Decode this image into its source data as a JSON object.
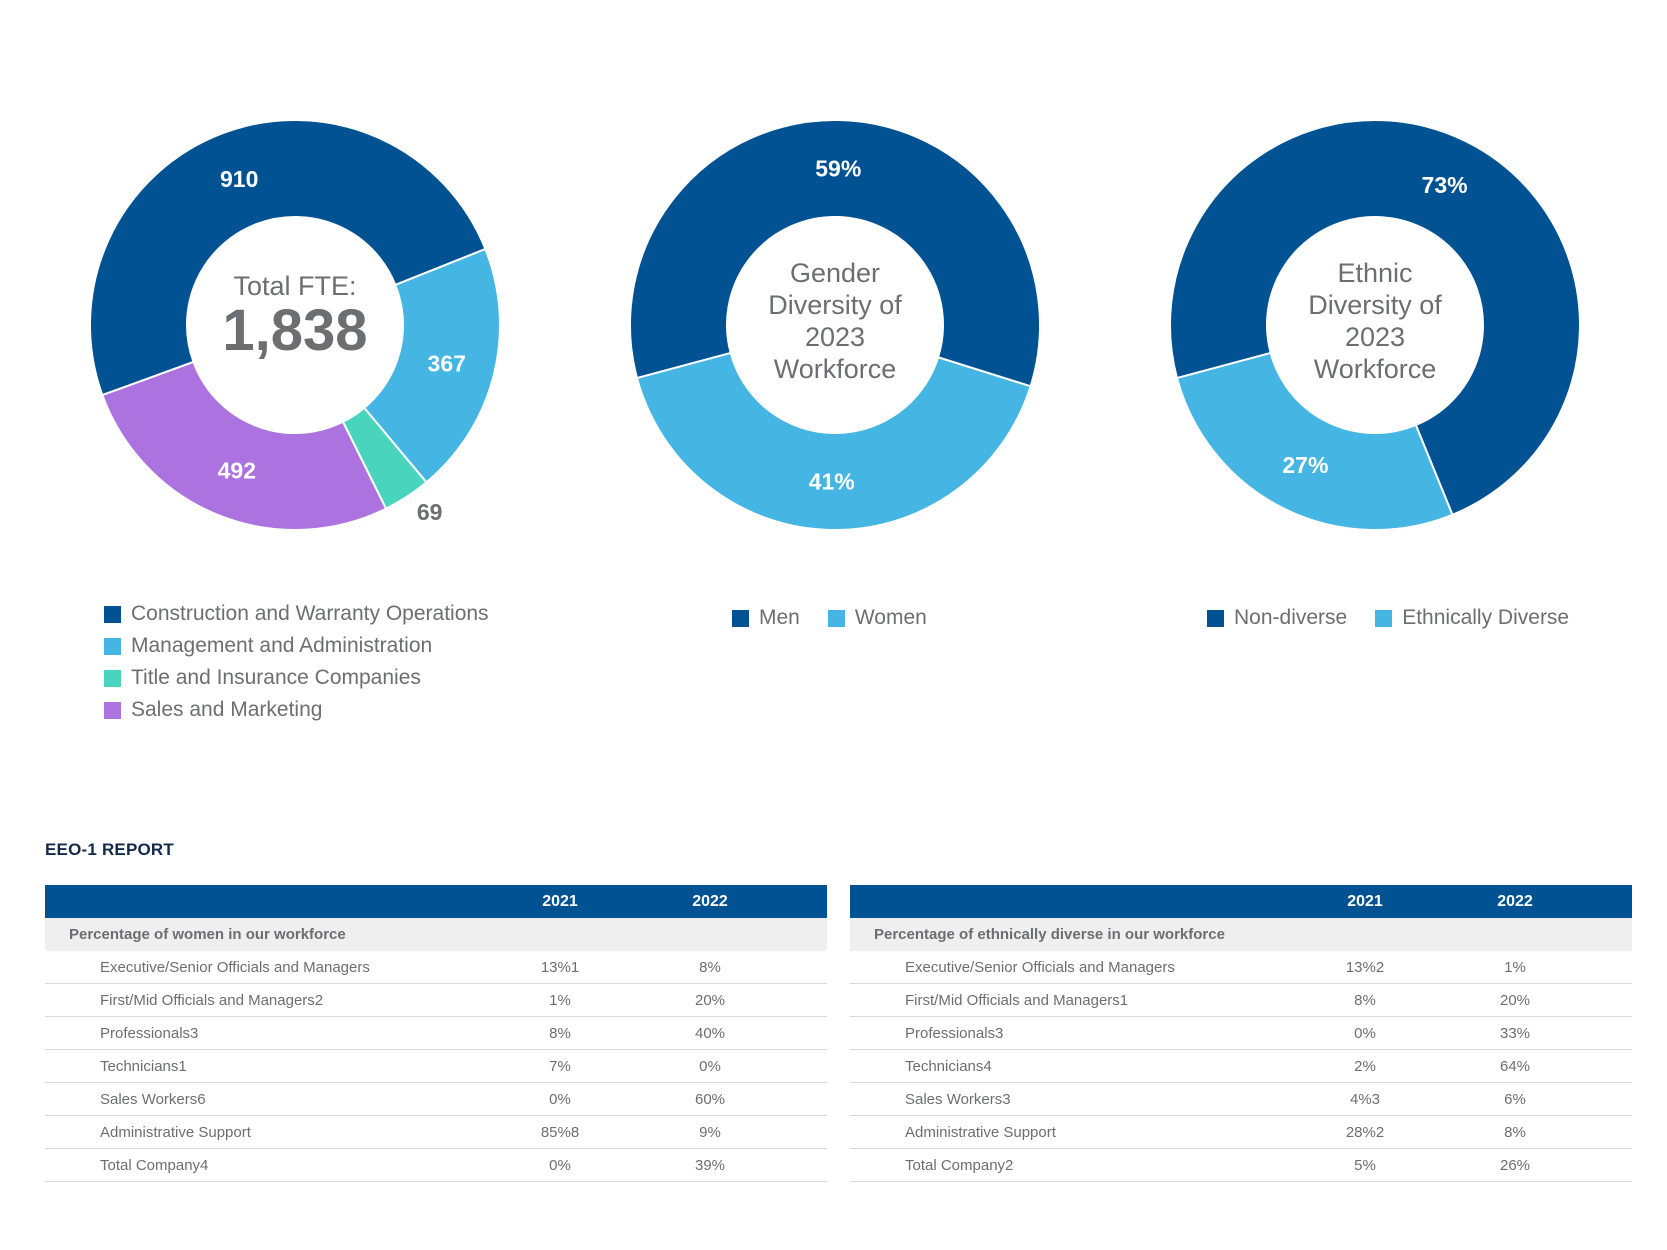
{
  "chart_data": [
    {
      "type": "pie",
      "variant": "donut",
      "center_label": "Total FTE:",
      "center_value": "1,838",
      "categories": [
        "Construction and Warranty Operations",
        "Management and Administration",
        "Title and Insurance Companies",
        "Sales and Marketing"
      ],
      "values": [
        910,
        367,
        69,
        492
      ],
      "labels": [
        "910",
        "367",
        "69",
        "492"
      ],
      "colors": [
        "#005293",
        "#45b5e3",
        "#48d4bd",
        "#ab72e0"
      ]
    },
    {
      "type": "pie",
      "variant": "donut",
      "center_label": "Gender Diversity of 2023 Workforce",
      "center_lines": [
        "Gender",
        "Diversity of",
        "2023",
        "Workforce"
      ],
      "categories": [
        "Men",
        "Women"
      ],
      "values": [
        59,
        41
      ],
      "labels": [
        "59%",
        "41%"
      ],
      "colors": [
        "#005293",
        "#45b5e3"
      ]
    },
    {
      "type": "pie",
      "variant": "donut",
      "center_label": "Ethnic Diversity of 2023 Workforce",
      "center_lines": [
        "Ethnic",
        "Diversity of",
        "2023",
        "Workforce"
      ],
      "categories": [
        "Non-diverse",
        "Ethnically Diverse"
      ],
      "values": [
        73,
        27
      ],
      "labels": [
        "73%",
        "27%"
      ],
      "colors": [
        "#005293",
        "#45b5e3"
      ]
    }
  ],
  "report": {
    "title": "EEO-1 REPORT",
    "tables": [
      {
        "headers": [
          "",
          "2021",
          "2022"
        ],
        "section": "Percentage of women in our workforce",
        "rows": [
          [
            "Executive/Senior Officials and Managers",
            "13%1",
            "8%"
          ],
          [
            "First/Mid Officials and Managers2",
            "1%",
            "20%"
          ],
          [
            "Professionals3",
            "8%",
            "40%"
          ],
          [
            "Technicians1",
            "7%",
            "0%"
          ],
          [
            "Sales Workers6",
            "0%",
            "60%"
          ],
          [
            "Administrative Support",
            "85%8",
            "9%"
          ],
          [
            "Total Company4",
            "0%",
            "39%"
          ]
        ]
      },
      {
        "headers": [
          "",
          "2021",
          "2022"
        ],
        "section": "Percentage of ethnically diverse in our workforce",
        "rows": [
          [
            "Executive/Senior Officials and Managers",
            "13%2",
            "1%"
          ],
          [
            "First/Mid Officials and Managers1",
            "8%",
            "20%"
          ],
          [
            "Professionals3",
            "0%",
            "33%"
          ],
          [
            "Technicians4",
            "2%",
            "64%"
          ],
          [
            "Sales Workers3",
            "4%3",
            "6%"
          ],
          [
            "Administrative Support",
            "28%2",
            "8%"
          ],
          [
            "Total Company2",
            "5%",
            "26%"
          ]
        ]
      }
    ]
  }
}
